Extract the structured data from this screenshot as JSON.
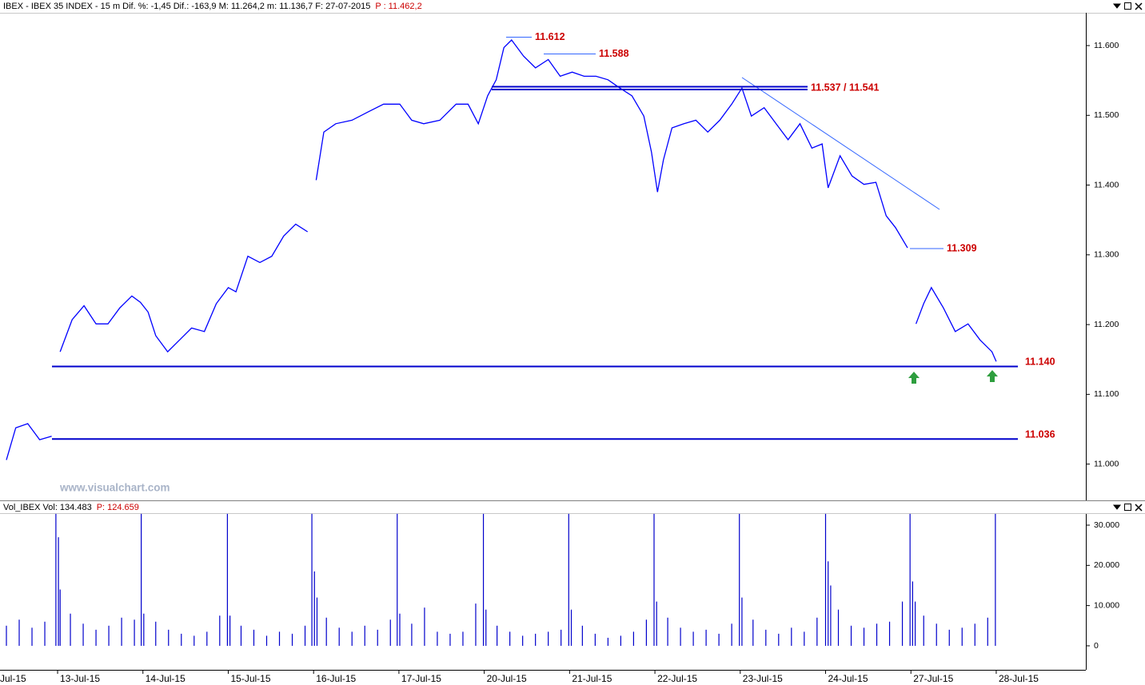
{
  "chart_data": [
    {
      "type": "line",
      "title": "IBEX - IBEX 35 INDEX - 15 m Dif. %: -1,45 Dif.: -163,9 M: 11.264,2 m: 11.136,7 F: 27-07-2015",
      "price_label": "P : 11.462,2",
      "watermark": "www.visualchart.com",
      "ylim": [
        10948,
        11647
      ],
      "yticks": [
        {
          "value": 11000,
          "label": "11.000"
        },
        {
          "value": 11100,
          "label": "11.100"
        },
        {
          "value": 11200,
          "label": "11.200"
        },
        {
          "value": 11300,
          "label": "11.300"
        },
        {
          "value": 11400,
          "label": "11.400"
        },
        {
          "value": 11500,
          "label": "11.500"
        },
        {
          "value": 11600,
          "label": "11.600"
        }
      ],
      "xlim": [
        -0.675,
        12.05
      ],
      "series": [
        {
          "name": "IBEX",
          "color": "#0000ff",
          "x": [
            -0.6,
            -0.49,
            -0.35,
            -0.21,
            -0.07,
            0,
            0.03,
            0.17,
            0.31,
            0.45,
            0.59,
            0.73,
            0.87,
            0.97,
            1.06,
            1.15,
            1.29,
            1.43,
            1.57,
            1.72,
            1.86,
            2.0,
            2.09,
            2.23,
            2.37,
            2.51,
            2.65,
            2.79,
            2.93,
            3.0,
            3.03,
            3.12,
            3.26,
            3.45,
            3.64,
            3.82,
            4.01,
            4.15,
            4.29,
            4.48,
            4.67,
            4.81,
            4.93,
            5.04,
            5.14,
            5.23,
            5.32,
            5.46,
            5.6,
            5.75,
            5.89,
            6.03,
            6.17,
            6.31,
            6.45,
            6.59,
            6.73,
            6.87,
            6.96,
            7.03,
            7.1,
            7.2,
            7.34,
            7.48,
            7.62,
            7.76,
            7.9,
            8.02,
            8.13,
            8.28,
            8.42,
            8.56,
            8.7,
            8.84,
            8.96,
            9.03,
            9.17,
            9.31,
            9.45,
            9.59,
            9.71,
            9.82,
            9.96,
            10.0,
            10.06,
            10.15,
            10.24,
            10.38,
            10.52,
            10.67,
            10.81,
            10.95,
            11.0
          ],
          "values": [
            11006,
            11052,
            11058,
            11035,
            11040,
            null,
            11161,
            11207,
            11227,
            11201,
            11201,
            11224,
            11241,
            11232,
            11218,
            11184,
            11161,
            11178,
            11195,
            11190,
            11230,
            11253,
            11247,
            11298,
            11289,
            11298,
            11327,
            11344,
            11333,
            null,
            11407,
            11476,
            11488,
            11493,
            11505,
            11516,
            11516,
            11493,
            11488,
            11493,
            11516,
            11516,
            11488,
            11528,
            11551,
            11597,
            11608,
            11585,
            11568,
            11580,
            11556,
            11562,
            11556,
            11556,
            11551,
            11539,
            11528,
            11499,
            11447,
            11390,
            11436,
            11482,
            11488,
            11493,
            11476,
            11493,
            11516,
            11539,
            11499,
            11511,
            11488,
            11465,
            11488,
            11453,
            11459,
            11396,
            11442,
            11413,
            11401,
            11404,
            11356,
            11339,
            11310,
            null,
            11201,
            11230,
            11253,
            11224,
            11190,
            11201,
            11178,
            11161,
            11147
          ]
        }
      ],
      "levels": [
        {
          "values": [
            11612
          ],
          "label": "11.612"
        },
        {
          "values": [
            11588
          ],
          "label": "11.588"
        },
        {
          "values": [
            11537,
            11541
          ],
          "label": "11.537 / 11.541"
        },
        {
          "values": [
            11309
          ],
          "label": "11.309"
        },
        {
          "values": [
            11140
          ],
          "label": "11.140"
        },
        {
          "values": [
            11036
          ],
          "label": "11.036"
        }
      ]
    },
    {
      "type": "bar",
      "title": "Vol_IBEX Vol: 134.483",
      "price_label": "P: 124.659",
      "color": "#0000cc",
      "ylim": [
        -5370,
        32780
      ],
      "yticks": [
        0,
        {
          "value": 10000,
          "label": "10.000"
        },
        {
          "value": 20000,
          "label": "20.000"
        },
        {
          "value": 30000,
          "label": "30.000"
        }
      ],
      "xlim": [
        -0.675,
        12.05
      ],
      "xticks": [
        {
          "value": -1,
          "label": "Jul-15"
        },
        {
          "value": 0,
          "label": "13-Jul-15"
        },
        {
          "value": 1,
          "label": "14-Jul-15"
        },
        {
          "value": 2,
          "label": "15-Jul-15"
        },
        {
          "value": 3,
          "label": "16-Jul-15"
        },
        {
          "value": 4,
          "label": "17-Jul-15"
        },
        {
          "value": 5,
          "label": "20-Jul-15"
        },
        {
          "value": 6,
          "label": "21-Jul-15"
        },
        {
          "value": 7,
          "label": "22-Jul-15"
        },
        {
          "value": 8,
          "label": "23-Jul-15"
        },
        {
          "value": 9,
          "label": "24-Jul-15"
        },
        {
          "value": 10,
          "label": "27-Jul-15"
        },
        {
          "value": 11,
          "label": "28-Jul-15"
        }
      ],
      "x": [
        -0.6,
        -0.45,
        -0.3,
        -0.15,
        -0.02,
        0.01,
        0.03,
        0.15,
        0.3,
        0.45,
        0.6,
        0.75,
        0.9,
        0.98,
        1.01,
        1.15,
        1.3,
        1.45,
        1.6,
        1.75,
        1.9,
        1.99,
        2.02,
        2.15,
        2.3,
        2.45,
        2.6,
        2.75,
        2.9,
        2.98,
        3.01,
        3.04,
        3.15,
        3.3,
        3.45,
        3.6,
        3.75,
        3.9,
        3.98,
        4.01,
        4.15,
        4.3,
        4.45,
        4.6,
        4.75,
        4.9,
        4.99,
        5.02,
        5.15,
        5.3,
        5.45,
        5.6,
        5.75,
        5.9,
        5.99,
        6.02,
        6.15,
        6.3,
        6.45,
        6.6,
        6.75,
        6.9,
        6.99,
        7.02,
        7.15,
        7.3,
        7.45,
        7.6,
        7.75,
        7.9,
        7.99,
        8.02,
        8.15,
        8.3,
        8.45,
        8.6,
        8.75,
        8.9,
        9.0,
        9.03,
        9.06,
        9.15,
        9.3,
        9.45,
        9.6,
        9.75,
        9.9,
        9.99,
        10.02,
        10.05,
        10.15,
        10.3,
        10.45,
        10.6,
        10.75,
        10.9,
        10.99
      ],
      "values": [
        5000,
        6500,
        4500,
        6000,
        32800,
        27000,
        14000,
        8000,
        5500,
        4000,
        5000,
        7000,
        6500,
        32800,
        8000,
        6000,
        4000,
        3000,
        2500,
        3500,
        7500,
        32800,
        7500,
        5000,
        4000,
        2500,
        3500,
        3000,
        5000,
        32800,
        18500,
        12000,
        7000,
        4500,
        3500,
        5000,
        4000,
        6500,
        32800,
        8000,
        5500,
        9500,
        3500,
        3000,
        3500,
        10500,
        32800,
        9000,
        5000,
        3500,
        2500,
        3000,
        3500,
        4000,
        32800,
        9000,
        5000,
        3000,
        2000,
        2500,
        3500,
        6500,
        32800,
        11000,
        7000,
        4500,
        3500,
        4000,
        3000,
        5500,
        32800,
        12000,
        6500,
        4000,
        3000,
        4500,
        3500,
        7000,
        32800,
        21000,
        15000,
        9000,
        5000,
        4500,
        5500,
        6000,
        11000,
        32800,
        16000,
        11000,
        7500,
        5500,
        4000,
        4500,
        5500,
        7000,
        32800
      ]
    }
  ]
}
